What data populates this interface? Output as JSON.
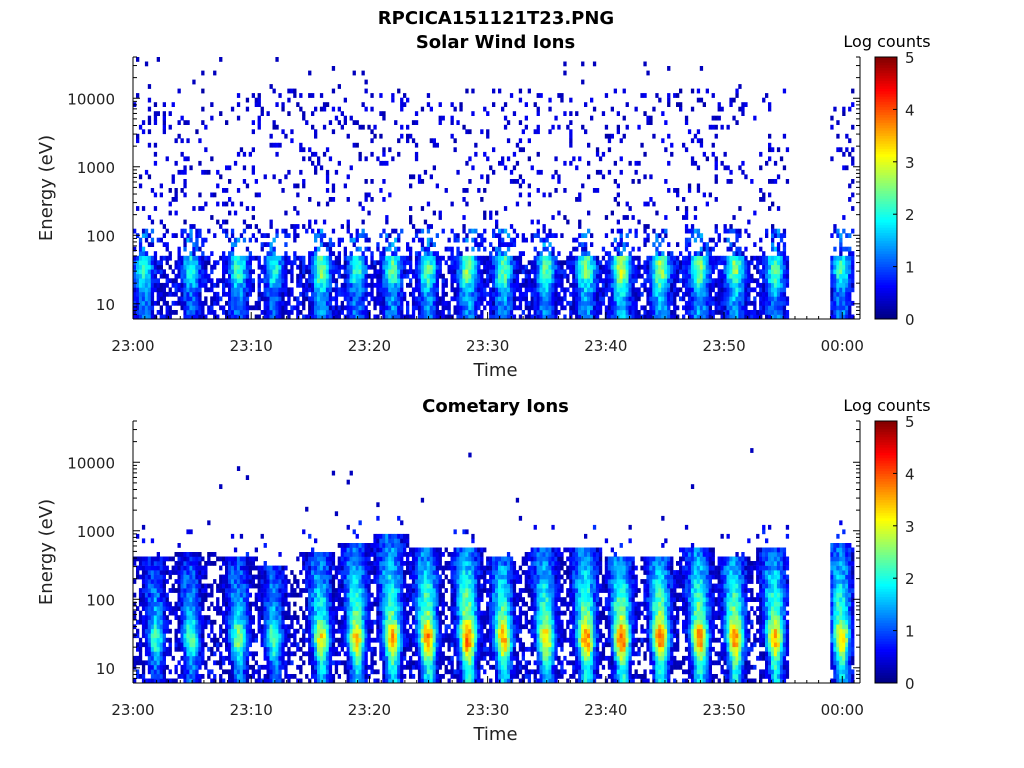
{
  "figure": {
    "title": "RPCICA151121T23.PNG"
  },
  "chart_data": [
    {
      "type": "heatmap",
      "title": "Solar Wind Ions",
      "xlabel": "Time",
      "ylabel": "Energy (eV)",
      "x_tick_labels": [
        "23:00",
        "23:10",
        "23:20",
        "23:30",
        "23:40",
        "23:50",
        "00:00"
      ],
      "x_ticks_minutes": [
        0,
        10,
        20,
        30,
        40,
        50,
        60
      ],
      "x_range_minutes": [
        0,
        61.5
      ],
      "y_scale": "log",
      "y_range": [
        6,
        40000
      ],
      "y_tick_labels": [
        "10",
        "100",
        "1000",
        "10000"
      ],
      "y_ticks": [
        10,
        100,
        1000,
        10000
      ],
      "data_gap_minutes": [
        55.3,
        58.8
      ],
      "colorbar": {
        "title": "Log counts",
        "range": [
          0,
          5
        ],
        "tick_labels": [
          "0",
          "1",
          "2",
          "3",
          "4",
          "5"
        ],
        "colormap": "jet"
      },
      "burst_centers_minutes": [
        0.8,
        4.8,
        8.8,
        11.8,
        15.8,
        18.8,
        21.8,
        24.8,
        28.2,
        31.2,
        34.8,
        38.2,
        41.2,
        44.5,
        47.8,
        50.8,
        54.2,
        59.8
      ],
      "burst_peak_log_counts": [
        2.2,
        2.0,
        2.2,
        2.0,
        2.6,
        2.2,
        2.4,
        2.4,
        2.6,
        2.5,
        2.4,
        2.6,
        3.0,
        2.8,
        2.6,
        2.6,
        2.4,
        2.2
      ],
      "burst_peak_energy_ev": 30,
      "background_level_log_counts": 0.3
    },
    {
      "type": "heatmap",
      "title": "Cometary Ions",
      "xlabel": "Time",
      "ylabel": "Energy (eV)",
      "x_tick_labels": [
        "23:00",
        "23:10",
        "23:20",
        "23:30",
        "23:40",
        "23:50",
        "00:00"
      ],
      "x_ticks_minutes": [
        0,
        10,
        20,
        30,
        40,
        50,
        60
      ],
      "x_range_minutes": [
        0,
        61.5
      ],
      "y_scale": "log",
      "y_range": [
        6,
        40000
      ],
      "y_tick_labels": [
        "10",
        "100",
        "1000",
        "10000"
      ],
      "y_ticks": [
        10,
        100,
        1000,
        10000
      ],
      "data_gap_minutes": [
        55.3,
        58.8
      ],
      "colorbar": {
        "title": "Log counts",
        "range": [
          0,
          5
        ],
        "tick_labels": [
          "0",
          "1",
          "2",
          "3",
          "4",
          "5"
        ],
        "colormap": "jet"
      },
      "burst_centers_minutes": [
        1.8,
        4.8,
        8.8,
        11.8,
        15.8,
        18.8,
        21.8,
        24.8,
        28.2,
        31.2,
        34.8,
        38.2,
        41.2,
        44.5,
        47.8,
        50.8,
        54.2,
        59.8
      ],
      "burst_peak_log_counts": [
        2.2,
        2.4,
        2.6,
        2.4,
        3.2,
        3.4,
        3.6,
        3.8,
        4.0,
        3.6,
        3.4,
        3.8,
        4.0,
        4.0,
        3.8,
        3.8,
        3.6,
        3.4
      ],
      "burst_top_energy_ev": [
        400,
        450,
        400,
        300,
        450,
        600,
        800,
        500,
        500,
        400,
        500,
        500,
        400,
        400,
        500,
        400,
        500,
        600
      ],
      "burst_peak_energy_ev": 25
    }
  ]
}
